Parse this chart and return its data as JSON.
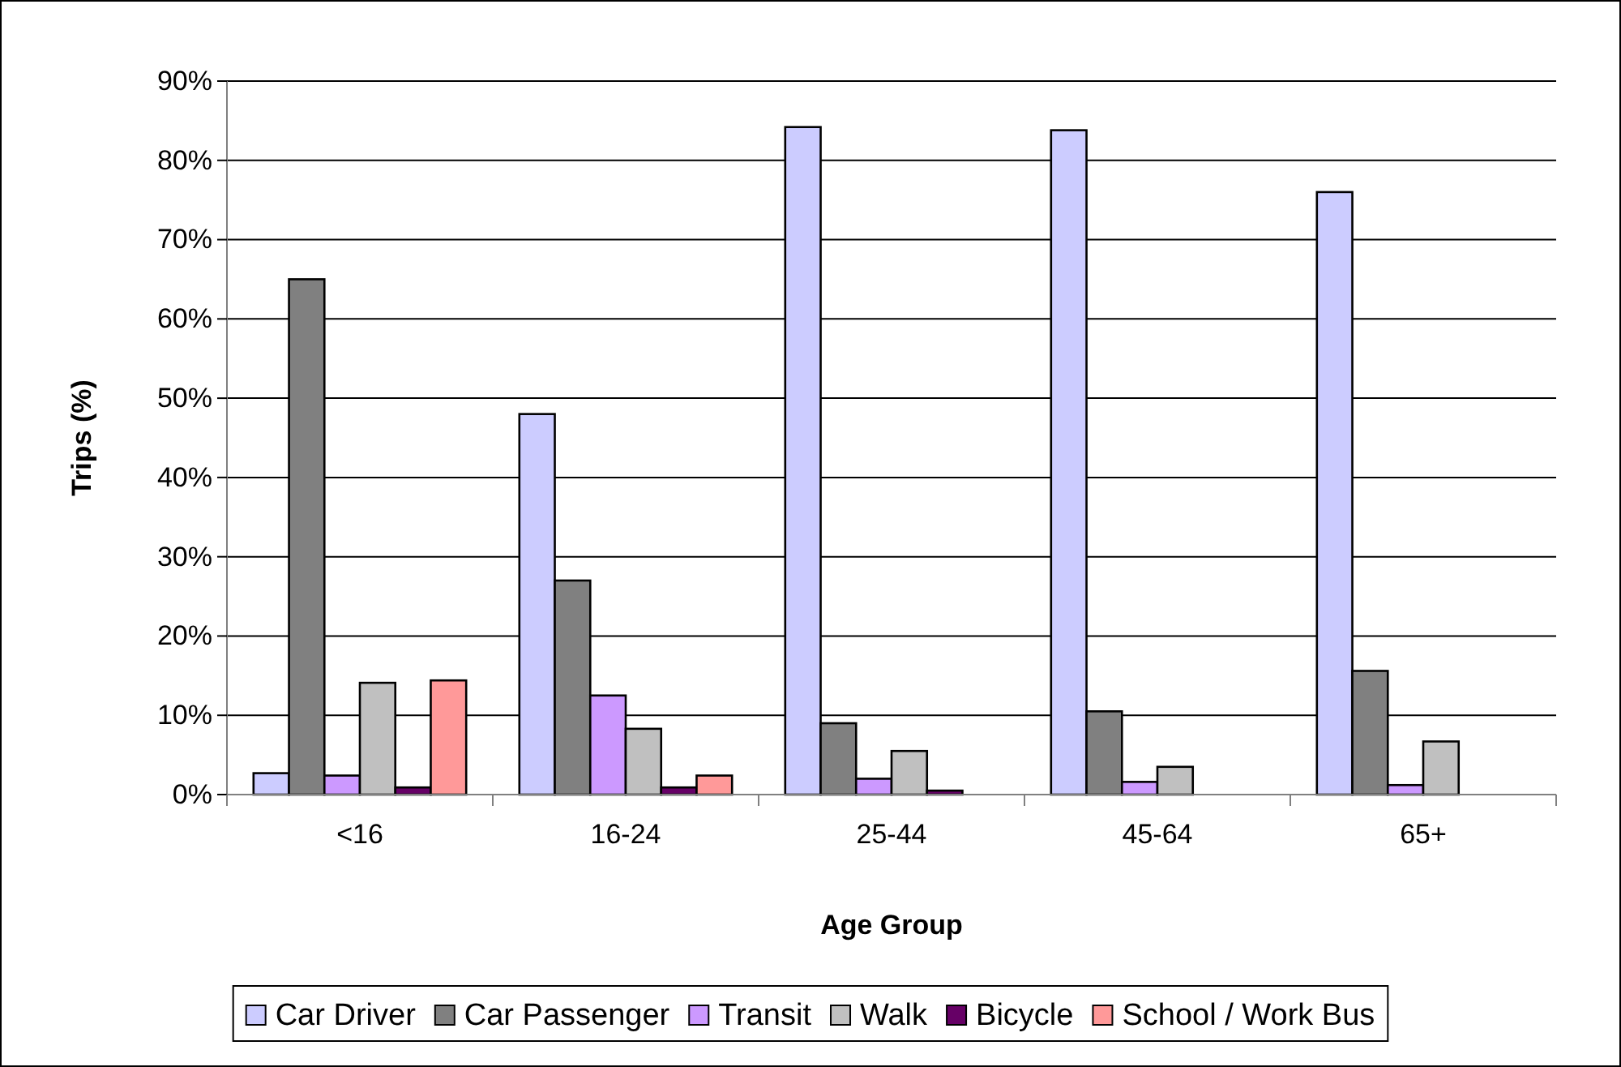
{
  "chart_data": {
    "type": "bar",
    "xlabel": "Age Group",
    "ylabel": "Trips (%)",
    "categories": [
      "<16",
      "16-24",
      "25-44",
      "45-64",
      "65+"
    ],
    "series": [
      {
        "name": "Car Driver",
        "color": "#ccccff",
        "values": [
          2.7,
          48,
          84.2,
          83.8,
          76
        ]
      },
      {
        "name": "Car Passenger",
        "color": "#808080",
        "values": [
          65,
          27,
          9,
          10.5,
          15.6
        ]
      },
      {
        "name": "Transit",
        "color": "#cc99ff",
        "values": [
          2.4,
          12.5,
          2,
          1.6,
          1.2
        ]
      },
      {
        "name": "Walk",
        "color": "#c0c0c0",
        "values": [
          14.1,
          8.3,
          5.5,
          3.5,
          6.7
        ]
      },
      {
        "name": "Bicycle",
        "color": "#660066",
        "values": [
          0.9,
          0.9,
          0.5,
          0,
          0
        ]
      },
      {
        "name": "School / Work Bus",
        "color": "#ff9999",
        "values": [
          14.4,
          2.4,
          0,
          0,
          0
        ]
      }
    ],
    "ylim": [
      0,
      90
    ],
    "yticks": [
      {
        "value": 0,
        "label": "0%"
      },
      {
        "value": 10,
        "label": "10%"
      },
      {
        "value": 20,
        "label": "20%"
      },
      {
        "value": 30,
        "label": "30%"
      },
      {
        "value": 40,
        "label": "40%"
      },
      {
        "value": 50,
        "label": "50%"
      },
      {
        "value": 60,
        "label": "60%"
      },
      {
        "value": 70,
        "label": "70%"
      },
      {
        "value": 80,
        "label": "80%"
      },
      {
        "value": 90,
        "label": "90%"
      }
    ],
    "grid": "y",
    "legend": "bottom"
  }
}
